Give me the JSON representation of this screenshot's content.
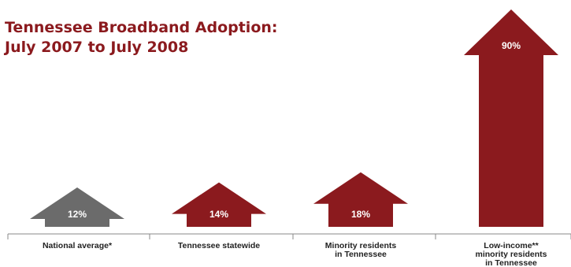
{
  "chart_data": {
    "type": "bar",
    "title": [
      "Tennessee Broadband Adoption:",
      "July 2007 to July 2008"
    ],
    "categories": [
      [
        "National average*"
      ],
      [
        "Tennessee statewide"
      ],
      [
        "Minority residents",
        "in Tennessee"
      ],
      [
        "Low-income**",
        "minority residents",
        "in Tennessee"
      ]
    ],
    "values": [
      12,
      14,
      18,
      90
    ],
    "value_labels": [
      "12%",
      "14%",
      "18%",
      "90%"
    ],
    "bar_colors": [
      "#6b6b6b",
      "#8b1a1e",
      "#8b1a1e",
      "#8b1a1e"
    ],
    "ylim": [
      0,
      90
    ],
    "grid": false,
    "legend": "none"
  },
  "colors": {
    "title": "#8b1a1e",
    "axis": "#888888",
    "text": "#222222",
    "value_text": "#ffffff"
  }
}
